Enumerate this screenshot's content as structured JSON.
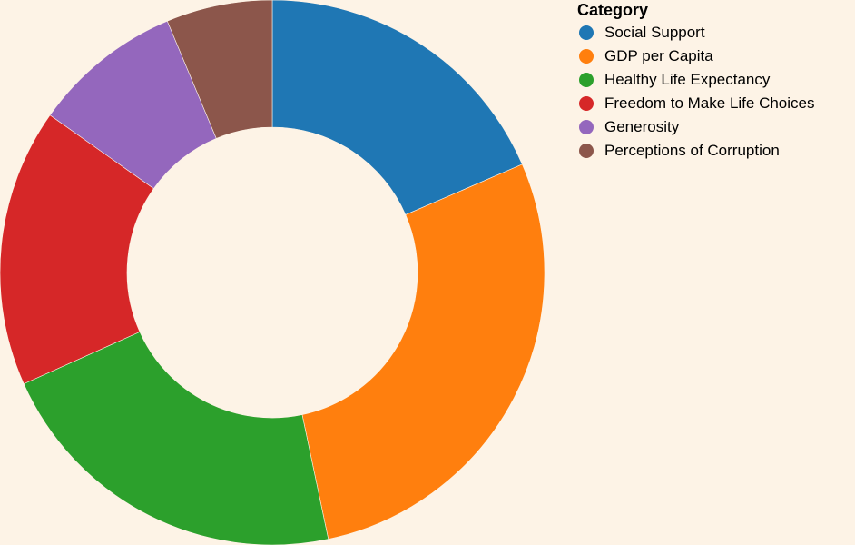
{
  "chart_data": {
    "type": "pie",
    "donut": true,
    "legend_title": "Category",
    "legend_placement": "top-right",
    "background_color": "#fdf3e6",
    "slices": [
      {
        "label": "Social Support",
        "value": 18.5,
        "color": "#1f77b4"
      },
      {
        "label": "GDP per Capita",
        "value": 28.2,
        "color": "#ff7f0e"
      },
      {
        "label": "Healthy Life Expectancy",
        "value": 21.6,
        "color": "#2ca02c"
      },
      {
        "label": "Freedom to Make Life Choices",
        "value": 16.5,
        "color": "#d62728"
      },
      {
        "label": "Generosity",
        "value": 8.9,
        "color": "#9467bd"
      },
      {
        "label": "Perceptions of Corruption",
        "value": 6.3,
        "color": "#8c564b"
      }
    ]
  }
}
